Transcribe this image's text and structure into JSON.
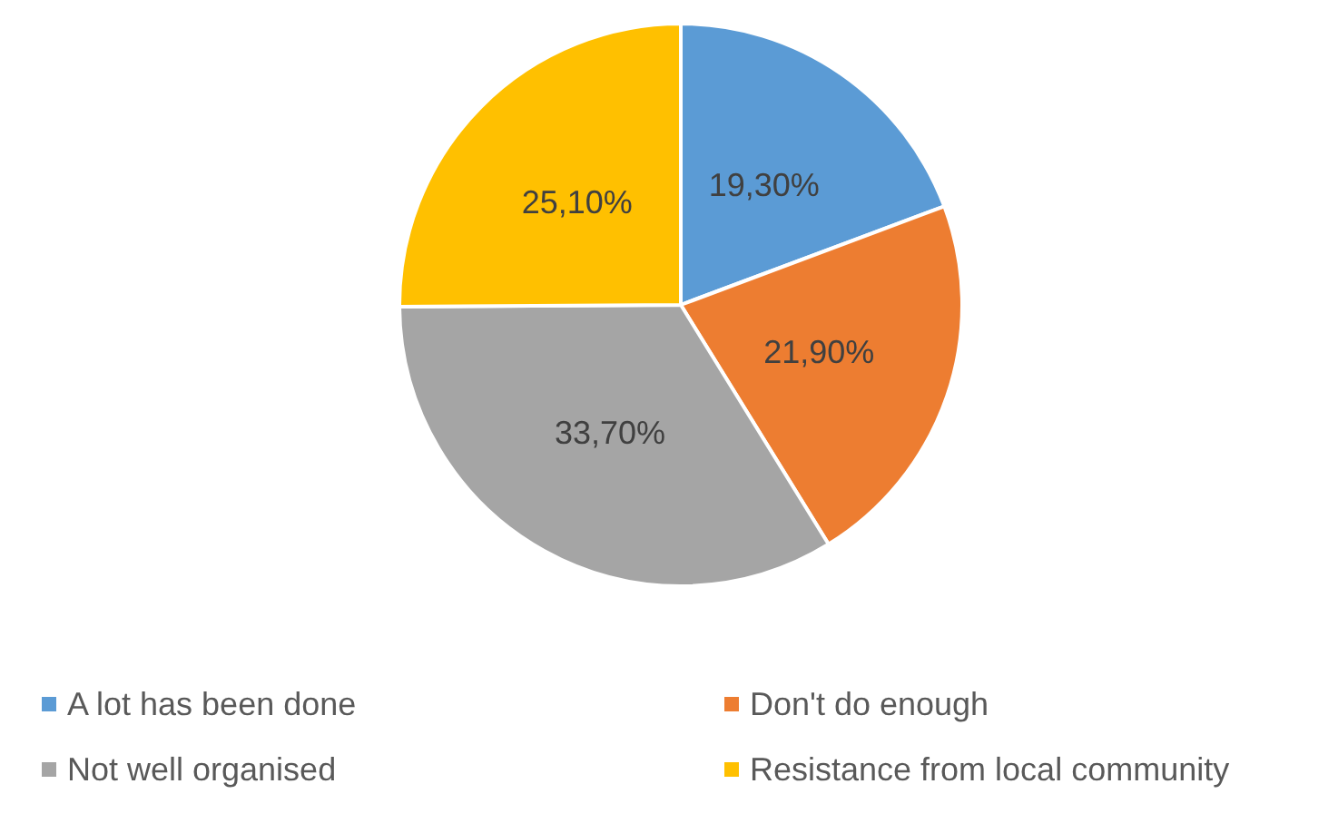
{
  "chart_data": {
    "type": "pie",
    "categories": [
      "A lot has been done",
      "Don't do enough",
      "Not well organised",
      "Resistance from local community"
    ],
    "values": [
      19.3,
      21.9,
      33.7,
      25.1
    ],
    "colors": [
      "#5b9bd5",
      "#ed7d31",
      "#a5a5a5",
      "#ffc000"
    ],
    "value_labels": [
      "19,30%",
      "21,90%",
      "33,70%",
      "25,10%"
    ],
    "legend": "bottom"
  }
}
